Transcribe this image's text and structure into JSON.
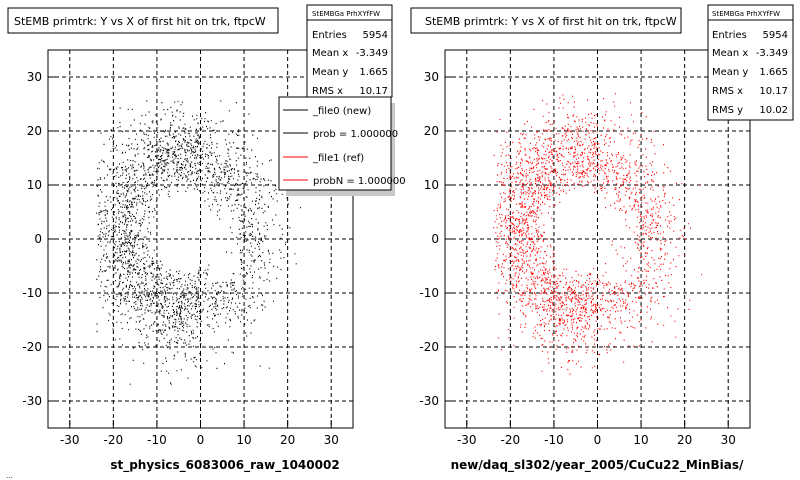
{
  "footer_text": "… ",
  "colors": {
    "black_series": "#000000",
    "red_series": "#ff0000",
    "grid": "#000000"
  },
  "chart_data": [
    {
      "type": "scatter",
      "title": "StEMB primtrk: Y vs X of first hit on trk, ftpcW",
      "xlabel": "st_physics_6083006_raw_1040002",
      "ylabel": "",
      "xlim": [
        -35,
        35
      ],
      "ylim": [
        -35,
        35
      ],
      "xticks": [
        -30,
        -20,
        -10,
        0,
        10,
        20,
        30
      ],
      "yticks": [
        -30,
        -20,
        -10,
        0,
        10,
        20,
        30
      ],
      "grid": true,
      "series": [
        {
          "name": "",
          "color": "#000000",
          "description_hidden": true
        }
      ],
      "stats": {
        "header": "StEMBGa PrhXYfFW",
        "rows": [
          {
            "label": "Entries",
            "value": "5954"
          },
          {
            "label": "Mean x",
            "value": "-3.349"
          },
          {
            "label": "Mean y",
            "value": "1.665"
          },
          {
            "label": "RMS x",
            "value": "10.17"
          }
        ]
      },
      "legend": {
        "placement": "top-right",
        "entries": [
          {
            "label": "_file0 (new)",
            "color": "#000000"
          },
          {
            "label": "prob = 1.000000",
            "color": "#000000"
          },
          {
            "label": "_file1 (ref)",
            "color": "#ff0000"
          },
          {
            "label": "probN = 1.000000",
            "color": "#ff0000"
          }
        ]
      }
    },
    {
      "type": "scatter",
      "title": "StEMB primtrk: Y vs X of first hit on trk, ftpcW",
      "xlabel": "new/daq_sl302/year_2005/CuCu22_MinBias/",
      "ylabel": "",
      "xlim": [
        -35,
        35
      ],
      "ylim": [
        -35,
        35
      ],
      "xticks": [
        -30,
        -20,
        -10,
        0,
        10,
        20,
        30
      ],
      "yticks": [
        -30,
        -20,
        -10,
        0,
        10,
        20,
        30
      ],
      "grid": true,
      "series": [
        {
          "name": "",
          "color": "#ff0000"
        }
      ],
      "stats": {
        "header": "StEMBGa PrhXYfFW",
        "rows": [
          {
            "label": "Entries",
            "value": "5954"
          },
          {
            "label": "Mean x",
            "value": "-3.349"
          },
          {
            "label": "Mean y",
            "value": "1.665"
          },
          {
            "label": "RMS x",
            "value": "10.17"
          },
          {
            "label": "RMS y",
            "value": "10.02"
          }
        ]
      }
    }
  ]
}
